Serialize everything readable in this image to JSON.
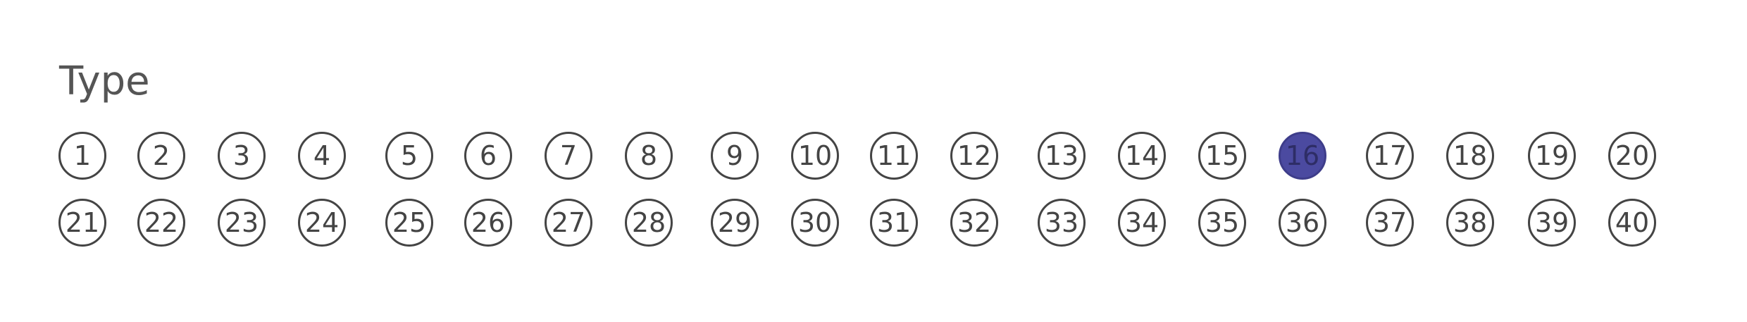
{
  "title": "Type",
  "bubbles": [
    "1",
    "2",
    "3",
    "4",
    "5",
    "6",
    "7",
    "8",
    "9",
    "10",
    "11",
    "12",
    "13",
    "14",
    "15",
    "16",
    "17",
    "18",
    "19",
    "20",
    "21",
    "22",
    "23",
    "24",
    "25",
    "26",
    "27",
    "28",
    "29",
    "30",
    "31",
    "32",
    "33",
    "34",
    "35",
    "36",
    "37",
    "38",
    "39",
    "40"
  ],
  "selected": [
    "16"
  ],
  "colors": {
    "ink": "#444444",
    "fill": "#4b4aa0"
  }
}
